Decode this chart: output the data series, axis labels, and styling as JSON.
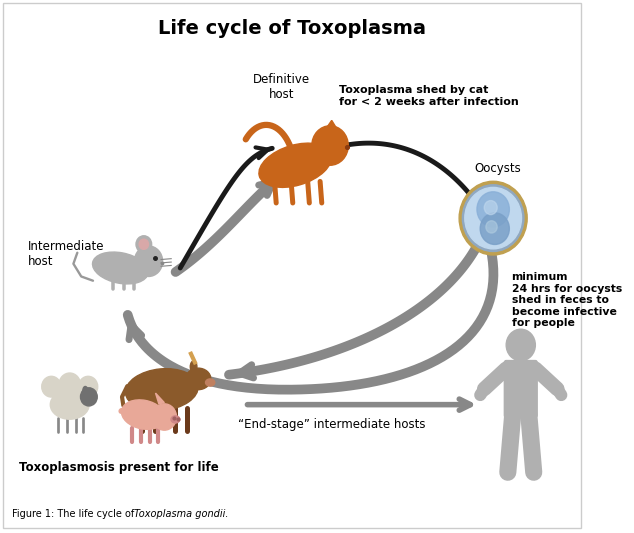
{
  "title": "Life cycle of Toxoplasma",
  "background_color": "#ffffff",
  "title_fontsize": 14,
  "title_fontweight": "bold",
  "labels": {
    "definitive_host": "Definitive\nhost",
    "intermediate_host": "Intermediate\nhost",
    "oocysts": "Oocysts",
    "toxoplasma_shed": "Toxoplasma shed by cat\nfor < 2 weeks after infection",
    "minimum_24hrs": "minimum\n24 hrs for oocysts\nshed in feces to\nbecome infective\nfor people",
    "end_stage": "“End-stage” intermediate hosts",
    "toxoplasmosis_life": "Toxoplasmosis present for life",
    "figure_caption_plain": "Figure 1: The life cycle of ",
    "figure_caption_italic": "Toxoplasma gondii."
  },
  "arrow_black": "#1a1a1a",
  "arrow_gray": "#aaaaaa",
  "arrow_gray_dark": "#888888",
  "cat_color": "#c8651a",
  "mouse_color": "#b0b0b0",
  "oocyst_outer": "#b8a060",
  "oocyst_inner": "#b8d4e8",
  "oocyst_cell": "#7099c8",
  "human_color": "#b0b0b0",
  "cow_color": "#8B5a2b",
  "sheep_color": "#d8d4c8",
  "pig_color": "#e8a898"
}
